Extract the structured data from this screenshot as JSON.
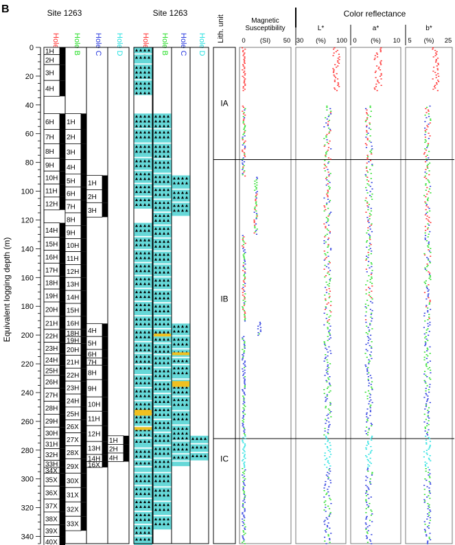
{
  "panel_letter": "B",
  "site_label": "Site 1263",
  "y_axis_label": "Equivalent logging depth (m)",
  "depth_ticks": [
    0,
    20,
    40,
    60,
    80,
    100,
    120,
    140,
    160,
    180,
    200,
    220,
    240,
    260,
    280,
    300,
    320,
    340
  ],
  "colors": {
    "holeA": "#ff2a2a",
    "holeB": "#22dd22",
    "holeC": "#2233dd",
    "holeD": "#22e0e0",
    "ooze": "#66d8d8",
    "chert": "#f0c020",
    "black": "#000000"
  },
  "holes": [
    {
      "label": "Hole A",
      "color": "#ff2a2a"
    },
    {
      "label": "Hole B",
      "color": "#22dd22"
    },
    {
      "label": "Hole C",
      "color": "#2233dd"
    },
    {
      "label": "Hole D",
      "color": "#22e0e0"
    }
  ],
  "cores": {
    "A": [
      {
        "label": "1H",
        "top": 0,
        "bot": 5
      },
      {
        "label": "2H",
        "top": 5,
        "bot": 12
      },
      {
        "label": "3H",
        "top": 12,
        "bot": 23
      },
      {
        "label": "4H",
        "top": 23,
        "bot": 34
      },
      {
        "label": "6H",
        "top": 46,
        "bot": 57
      },
      {
        "label": "7H",
        "top": 57,
        "bot": 67
      },
      {
        "label": "8H",
        "top": 67,
        "bot": 77
      },
      {
        "label": "9H",
        "top": 77,
        "bot": 86
      },
      {
        "label": "10H",
        "top": 86,
        "bot": 95
      },
      {
        "label": "11H",
        "top": 95,
        "bot": 104
      },
      {
        "label": "12H",
        "top": 104,
        "bot": 113
      },
      {
        "label": "14H",
        "top": 122,
        "bot": 132
      },
      {
        "label": "15H",
        "top": 132,
        "bot": 141
      },
      {
        "label": "16H",
        "top": 141,
        "bot": 150
      },
      {
        "label": "17H",
        "top": 150,
        "bot": 159
      },
      {
        "label": "18H",
        "top": 159,
        "bot": 168
      },
      {
        "label": "19H",
        "top": 168,
        "bot": 177
      },
      {
        "label": "20H",
        "top": 177,
        "bot": 187
      },
      {
        "label": "21H",
        "top": 187,
        "bot": 196
      },
      {
        "label": "22H",
        "top": 196,
        "bot": 205
      },
      {
        "label": "23H",
        "top": 205,
        "bot": 213
      },
      {
        "label": "24H",
        "top": 213,
        "bot": 221
      },
      {
        "label": "25H",
        "top": 221,
        "bot": 228
      },
      {
        "label": "26H",
        "top": 228,
        "bot": 237
      },
      {
        "label": "27H",
        "top": 237,
        "bot": 246
      },
      {
        "label": "28H",
        "top": 246,
        "bot": 255
      },
      {
        "label": "29H",
        "top": 255,
        "bot": 264
      },
      {
        "label": "30H",
        "top": 264,
        "bot": 272
      },
      {
        "label": "31H",
        "top": 272,
        "bot": 279
      },
      {
        "label": "32H",
        "top": 279,
        "bot": 287
      },
      {
        "label": "33H",
        "top": 287,
        "bot": 292
      },
      {
        "label": "34X",
        "top": 292,
        "bot": 296
      },
      {
        "label": "35X",
        "top": 296,
        "bot": 305
      },
      {
        "label": "36X",
        "top": 305,
        "bot": 314
      },
      {
        "label": "37X",
        "top": 314,
        "bot": 323
      },
      {
        "label": "38X",
        "top": 323,
        "bot": 332
      },
      {
        "label": "39X",
        "top": 332,
        "bot": 340
      },
      {
        "label": "40X",
        "top": 340,
        "bot": 347
      }
    ],
    "B": [
      {
        "label": "1H",
        "top": 46,
        "bot": 57
      },
      {
        "label": "2H",
        "top": 57,
        "bot": 67
      },
      {
        "label": "3H",
        "top": 67,
        "bot": 78
      },
      {
        "label": "4H",
        "top": 78,
        "bot": 88
      },
      {
        "label": "5H",
        "top": 88,
        "bot": 97
      },
      {
        "label": "6H",
        "top": 97,
        "bot": 106
      },
      {
        "label": "7H",
        "top": 106,
        "bot": 115
      },
      {
        "label": "8H",
        "top": 115,
        "bot": 124
      },
      {
        "label": "9H",
        "top": 124,
        "bot": 133
      },
      {
        "label": "10H",
        "top": 133,
        "bot": 142
      },
      {
        "label": "11H",
        "top": 142,
        "bot": 151
      },
      {
        "label": "12H",
        "top": 151,
        "bot": 160
      },
      {
        "label": "13H",
        "top": 160,
        "bot": 169
      },
      {
        "label": "14H",
        "top": 169,
        "bot": 178
      },
      {
        "label": "15H",
        "top": 178,
        "bot": 187
      },
      {
        "label": "16H",
        "top": 187,
        "bot": 196
      },
      {
        "label": "18H",
        "top": 196,
        "bot": 201
      },
      {
        "label": "19H",
        "top": 201,
        "bot": 206
      },
      {
        "label": "20H",
        "top": 206,
        "bot": 214
      },
      {
        "label": "21H",
        "top": 214,
        "bot": 223
      },
      {
        "label": "22H",
        "top": 223,
        "bot": 232
      },
      {
        "label": "23H",
        "top": 232,
        "bot": 241
      },
      {
        "label": "24H",
        "top": 241,
        "bot": 250
      },
      {
        "label": "25H",
        "top": 250,
        "bot": 259
      },
      {
        "label": "26X",
        "top": 259,
        "bot": 268
      },
      {
        "label": "27X",
        "top": 268,
        "bot": 277
      },
      {
        "label": "28X",
        "top": 277,
        "bot": 286
      },
      {
        "label": "29X",
        "top": 286,
        "bot": 296
      },
      {
        "label": "30X",
        "top": 296,
        "bot": 306
      },
      {
        "label": "31X",
        "top": 306,
        "bot": 316
      },
      {
        "label": "32X",
        "top": 316,
        "bot": 326
      },
      {
        "label": "33X",
        "top": 326,
        "bot": 336
      }
    ],
    "C": [
      {
        "label": "1H",
        "top": 89,
        "bot": 99
      },
      {
        "label": "2H",
        "top": 99,
        "bot": 108
      },
      {
        "label": "3H",
        "top": 108,
        "bot": 118
      },
      {
        "label": "4H",
        "top": 192,
        "bot": 201
      },
      {
        "label": "5H",
        "top": 201,
        "bot": 210
      },
      {
        "label": "6H",
        "top": 210,
        "bot": 216
      },
      {
        "label": "7H",
        "top": 216,
        "bot": 221
      },
      {
        "label": "8H",
        "top": 221,
        "bot": 231
      },
      {
        "label": "9H",
        "top": 231,
        "bot": 243
      },
      {
        "label": "10H",
        "top": 243,
        "bot": 253
      },
      {
        "label": "11H",
        "top": 253,
        "bot": 263
      },
      {
        "label": "12H",
        "top": 263,
        "bot": 274
      },
      {
        "label": "13H",
        "top": 274,
        "bot": 283
      },
      {
        "label": "14H",
        "top": 283,
        "bot": 288
      },
      {
        "label": "16X",
        "top": 288,
        "bot": 292
      }
    ],
    "D": [
      {
        "label": "1H",
        "top": 270,
        "bot": 276
      },
      {
        "label": "2H",
        "top": 276,
        "bot": 282
      },
      {
        "label": "4H",
        "top": 282,
        "bot": 288
      }
    ]
  },
  "lith_unit_header": "Lith. unit",
  "lith_units": [
    {
      "label": "IA",
      "top": 0,
      "bot": 78
    },
    {
      "label": "IB",
      "top": 78,
      "bot": 272
    },
    {
      "label": "IC",
      "top": 272,
      "bot": 345
    }
  ],
  "color_reflectance_title": "Color reflectance",
  "data_panels": [
    {
      "key": "ms",
      "title": [
        "Magnetic",
        "Susceptibility"
      ],
      "ticks": [
        "0",
        "(SI)",
        "50"
      ]
    },
    {
      "key": "L",
      "title": [
        "L*"
      ],
      "ticks": [
        "30",
        "(%)",
        "100"
      ]
    },
    {
      "key": "a",
      "title": [
        "a*"
      ],
      "ticks": [
        "0",
        "(%)",
        "10"
      ]
    },
    {
      "key": "b",
      "title": [
        "b*"
      ],
      "ticks": [
        "5",
        "(%)",
        "25"
      ]
    }
  ]
}
